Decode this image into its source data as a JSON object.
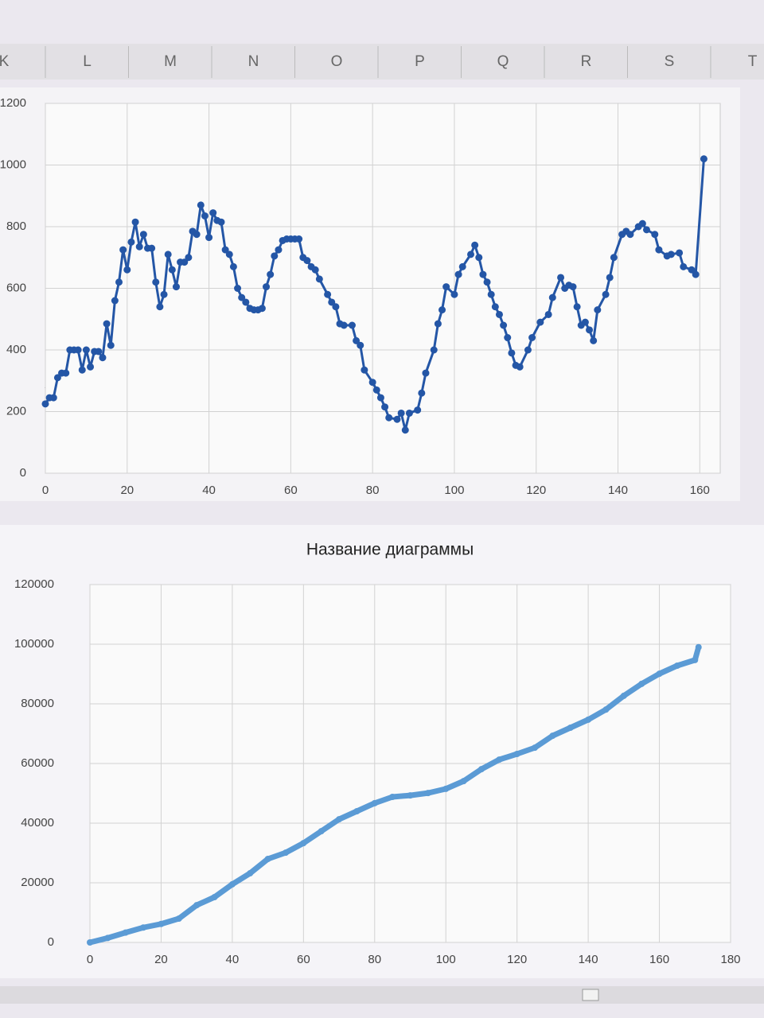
{
  "column_headers": [
    "K",
    "L",
    "M",
    "N",
    "O",
    "P",
    "Q",
    "R",
    "S",
    "T"
  ],
  "chart_data": [
    {
      "type": "line",
      "markers": true,
      "grid": true,
      "xlim": [
        0,
        165
      ],
      "xticks": [
        0,
        20,
        40,
        60,
        80,
        100,
        120,
        140,
        160
      ],
      "ylim": [
        0,
        1200
      ],
      "yticks": [
        0,
        200,
        400,
        600,
        800,
        1000,
        1200
      ],
      "x": [
        0,
        1,
        2,
        3,
        4,
        5,
        6,
        7,
        8,
        9,
        10,
        11,
        12,
        13,
        14,
        15,
        16,
        17,
        18,
        19,
        20,
        21,
        22,
        23,
        24,
        25,
        26,
        27,
        28,
        29,
        30,
        31,
        32,
        33,
        34,
        35,
        36,
        37,
        38,
        39,
        40,
        41,
        42,
        43,
        44,
        45,
        46,
        47,
        48,
        49,
        50,
        51,
        52,
        53,
        54,
        55,
        56,
        57,
        58,
        59,
        60,
        61,
        62,
        63,
        64,
        65,
        66,
        67,
        69,
        70,
        71,
        72,
        73,
        75,
        76,
        77,
        78,
        80,
        81,
        82,
        83,
        84,
        86,
        87,
        88,
        89,
        91,
        92,
        93,
        95,
        96,
        97,
        98,
        100,
        101,
        102,
        104,
        105,
        106,
        107,
        108,
        109,
        110,
        111,
        112,
        113,
        114,
        115,
        116,
        118,
        119,
        121,
        123,
        124,
        126,
        127,
        128,
        129,
        130,
        131,
        132,
        133,
        134,
        135,
        137,
        138,
        139,
        141,
        142,
        143,
        145,
        146,
        147,
        149,
        150,
        152,
        153,
        155,
        156,
        158,
        159,
        161
      ],
      "series": [
        {
          "color": "#2456a6",
          "values": [
            225,
            245,
            245,
            310,
            325,
            325,
            400,
            400,
            400,
            335,
            400,
            345,
            395,
            395,
            375,
            485,
            415,
            560,
            620,
            725,
            660,
            750,
            815,
            735,
            775,
            730,
            730,
            620,
            540,
            580,
            710,
            660,
            605,
            685,
            685,
            700,
            785,
            775,
            870,
            835,
            765,
            845,
            820,
            815,
            725,
            710,
            670,
            600,
            570,
            555,
            535,
            530,
            530,
            535,
            605,
            645,
            705,
            725,
            755,
            760,
            760,
            760,
            760,
            700,
            690,
            670,
            660,
            630,
            580,
            555,
            540,
            485,
            480,
            480,
            430,
            415,
            335,
            295,
            270,
            245,
            215,
            180,
            175,
            195,
            140,
            195,
            205,
            260,
            325,
            400,
            485,
            530,
            605,
            580,
            645,
            670,
            710,
            740,
            700,
            645,
            620,
            580,
            540,
            515,
            480,
            440,
            390,
            350,
            345,
            400,
            440,
            490,
            515,
            570,
            635,
            600,
            610,
            605,
            540,
            480,
            490,
            465,
            430,
            530,
            580,
            635,
            700,
            775,
            785,
            775,
            800,
            810,
            790,
            775,
            725,
            705,
            710,
            715,
            670,
            660,
            645,
            1020
          ]
        }
      ]
    },
    {
      "type": "line",
      "markers": true,
      "grid": true,
      "title": "Название диаграммы",
      "xlim": [
        0,
        180
      ],
      "xticks": [
        0,
        20,
        40,
        60,
        80,
        100,
        120,
        140,
        160,
        180
      ],
      "ylim": [
        0,
        120000
      ],
      "yticks": [
        0,
        20000,
        40000,
        60000,
        80000,
        100000,
        120000
      ],
      "x": [
        0,
        5,
        10,
        15,
        20,
        25,
        30,
        35,
        40,
        45,
        50,
        55,
        60,
        65,
        70,
        75,
        80,
        85,
        90,
        95,
        100,
        105,
        110,
        115,
        120,
        125,
        130,
        135,
        140,
        145,
        150,
        155,
        160,
        165,
        170,
        171
      ],
      "series": [
        {
          "color": "#5b9bd5",
          "values": [
            0,
            1500,
            3300,
            5000,
            6200,
            8000,
            12500,
            15200,
            19500,
            23200,
            28000,
            30100,
            33300,
            37300,
            41300,
            44000,
            46700,
            48800,
            49300,
            50100,
            51500,
            54100,
            58100,
            61300,
            63200,
            65300,
            69300,
            72000,
            74700,
            78100,
            82700,
            86700,
            90100,
            92800,
            94700,
            99000
          ]
        }
      ]
    }
  ]
}
